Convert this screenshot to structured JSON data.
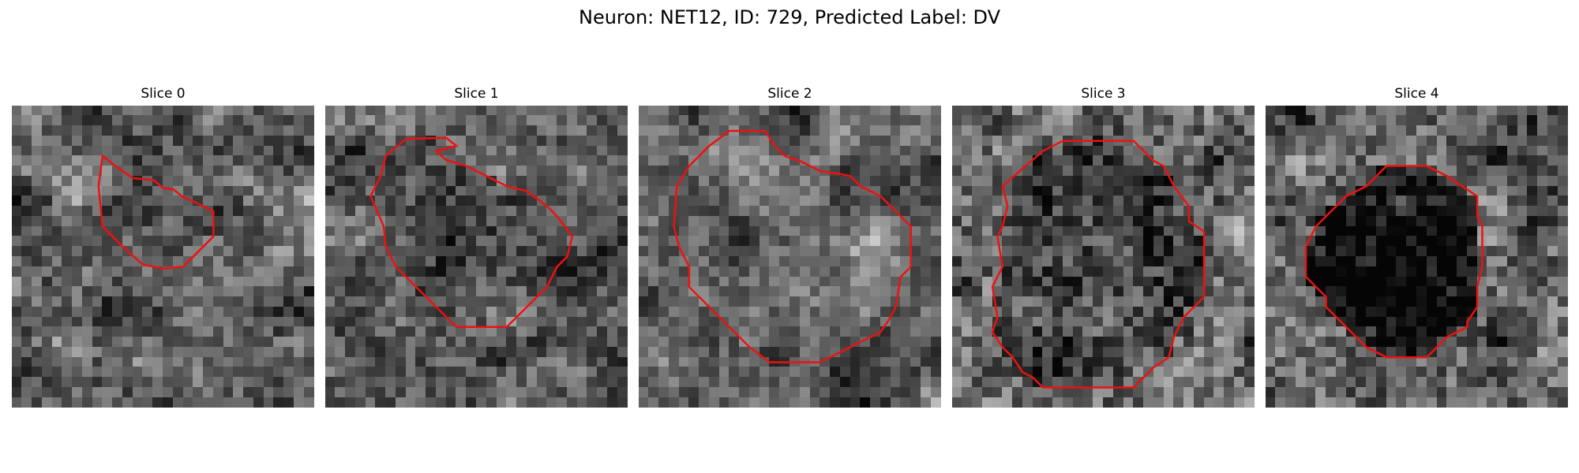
{
  "figure": {
    "title": "Neuron: NET12, ID: 729, Predicted Label: DV",
    "contour_color": "#ee1111",
    "image_colormap": "gray"
  },
  "panels": [
    {
      "title": "Slice 0",
      "contour": [
        [
          9.0,
          5.0
        ],
        [
          10.4,
          6.1
        ],
        [
          12.0,
          7.2
        ],
        [
          14.1,
          7.4
        ],
        [
          15.0,
          8.2
        ],
        [
          16.0,
          8.3
        ],
        [
          17.0,
          9.1
        ],
        [
          18.0,
          9.5
        ],
        [
          20.0,
          10.5
        ],
        [
          20.0,
          13.0
        ],
        [
          18.0,
          15.0
        ],
        [
          17.0,
          16.0
        ],
        [
          15.0,
          16.2
        ],
        [
          13.0,
          15.8
        ],
        [
          11.0,
          14.0
        ],
        [
          9.0,
          12.0
        ],
        [
          8.6,
          8.0
        ]
      ]
    },
    {
      "title": "Slice 1",
      "contour": [
        [
          6.0,
          5.0
        ],
        [
          8.0,
          3.3
        ],
        [
          12.0,
          3.2
        ],
        [
          13.0,
          4.0
        ],
        [
          11.0,
          4.5
        ],
        [
          12.0,
          5.4
        ],
        [
          14.0,
          6.0
        ],
        [
          16.0,
          7.0
        ],
        [
          18.0,
          8.0
        ],
        [
          20.0,
          8.5
        ],
        [
          22.0,
          10.0
        ],
        [
          23.0,
          11.0
        ],
        [
          24.5,
          13.0
        ],
        [
          24.0,
          15.0
        ],
        [
          23.0,
          16.0
        ],
        [
          22.0,
          18.0
        ],
        [
          20.0,
          20.0
        ],
        [
          18.0,
          22.0
        ],
        [
          13.0,
          22.0
        ],
        [
          10.0,
          19.0
        ],
        [
          7.0,
          16.0
        ],
        [
          6.0,
          14.0
        ],
        [
          5.8,
          12.0
        ],
        [
          4.5,
          9.0
        ],
        [
          5.5,
          7.0
        ]
      ]
    },
    {
      "title": "Slice 2",
      "contour": [
        [
          5.0,
          6.0
        ],
        [
          7.0,
          4.0
        ],
        [
          9.0,
          2.5
        ],
        [
          11.0,
          2.5
        ],
        [
          12.5,
          2.5
        ],
        [
          13.5,
          4.0
        ],
        [
          14.5,
          5.0
        ],
        [
          16.0,
          5.5
        ],
        [
          18.0,
          6.5
        ],
        [
          20.0,
          6.8
        ],
        [
          21.0,
          7.0
        ],
        [
          22.0,
          8.0
        ],
        [
          24.0,
          9.0
        ],
        [
          27.0,
          12.0
        ],
        [
          27.0,
          16.0
        ],
        [
          26.0,
          17.0
        ],
        [
          25.5,
          20.0
        ],
        [
          25.0,
          21.0
        ],
        [
          24.0,
          22.5
        ],
        [
          23.0,
          23.0
        ],
        [
          21.0,
          24.0
        ],
        [
          19.0,
          25.0
        ],
        [
          18.0,
          25.5
        ],
        [
          13.0,
          25.5
        ],
        [
          11.0,
          24.0
        ],
        [
          9.0,
          22.0
        ],
        [
          7.0,
          20.0
        ],
        [
          5.0,
          18.0
        ],
        [
          5.0,
          16.0
        ],
        [
          4.0,
          14.0
        ],
        [
          3.5,
          12.0
        ],
        [
          3.8,
          8.0
        ]
      ]
    },
    {
      "title": "Slice 3",
      "contour": [
        [
          5.0,
          8.0
        ],
        [
          9.0,
          4.5
        ],
        [
          11.0,
          3.5
        ],
        [
          18.0,
          3.5
        ],
        [
          20.0,
          5.5
        ],
        [
          21.0,
          6.0
        ],
        [
          21.5,
          7.0
        ],
        [
          22.0,
          8.0
        ],
        [
          23.5,
          10.0
        ],
        [
          23.5,
          11.5
        ],
        [
          25.0,
          12.5
        ],
        [
          25.0,
          14.0
        ],
        [
          25.0,
          19.0
        ],
        [
          23.0,
          21.0
        ],
        [
          22.0,
          23.0
        ],
        [
          21.5,
          25.0
        ],
        [
          20.0,
          26.0
        ],
        [
          18.0,
          28.0
        ],
        [
          9.0,
          28.0
        ],
        [
          8.0,
          27.0
        ],
        [
          7.0,
          26.5
        ],
        [
          6.0,
          25.0
        ],
        [
          5.0,
          24.0
        ],
        [
          4.0,
          22.5
        ],
        [
          4.5,
          21.0
        ],
        [
          4.0,
          18.0
        ],
        [
          5.0,
          16.0
        ],
        [
          4.5,
          13.0
        ],
        [
          5.0,
          12.0
        ],
        [
          5.5,
          10.0
        ]
      ]
    },
    {
      "title": "Slice 4",
      "contour": [
        [
          6.0,
          11.0
        ],
        [
          8.0,
          9.0
        ],
        [
          10.0,
          8.0
        ],
        [
          11.0,
          7.0
        ],
        [
          12.0,
          6.0
        ],
        [
          16.0,
          6.0
        ],
        [
          17.0,
          6.5
        ],
        [
          18.0,
          7.0
        ],
        [
          19.5,
          8.0
        ],
        [
          21.0,
          9.0
        ],
        [
          21.0,
          11.0
        ],
        [
          21.5,
          12.0
        ],
        [
          21.5,
          16.0
        ],
        [
          21.0,
          18.0
        ],
        [
          21.0,
          20.0
        ],
        [
          20.0,
          21.5
        ],
        [
          20.0,
          22.0
        ],
        [
          18.0,
          23.0
        ],
        [
          17.0,
          24.0
        ],
        [
          16.0,
          25.0
        ],
        [
          12.0,
          25.0
        ],
        [
          10.0,
          24.0
        ],
        [
          9.0,
          23.0
        ],
        [
          8.0,
          22.0
        ],
        [
          7.0,
          21.0
        ],
        [
          6.0,
          20.0
        ],
        [
          6.0,
          19.0
        ],
        [
          5.0,
          18.0
        ],
        [
          4.0,
          17.0
        ],
        [
          4.0,
          14.0
        ],
        [
          5.0,
          12.0
        ]
      ]
    }
  ]
}
